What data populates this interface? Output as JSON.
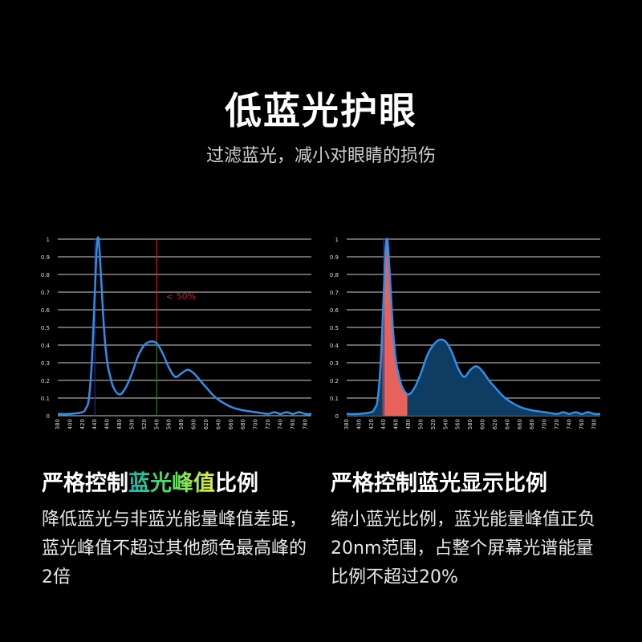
{
  "header": {
    "title": "低蓝光护眼",
    "subtitle": "过滤蓝光，减小对眼睛的损伤"
  },
  "left_panel": {
    "heading_a": "严格控制",
    "heading_b": "蓝光峰值",
    "heading_c": "比例",
    "desc": "降低蓝光与非蓝光能量峰值差距，蓝光峰值不超过其他颜色最高峰的2倍"
  },
  "right_panel": {
    "heading": "严格控制蓝光显示比例",
    "desc": "缩小蓝光比例，蓝光能量峰值正负20nm范围，占整个屏幕光谱能量比例不超过20%"
  },
  "colors": {
    "curve": "#2f8fe8",
    "blue_fill": "#0e3c63",
    "red_fill": "#e8625c",
    "annotation": "#cc1f1f",
    "grid": "#cfcfcf"
  },
  "chart_data": [
    {
      "type": "line",
      "xlabel": "",
      "ylabel": "",
      "xlim": [
        380,
        790
      ],
      "ylim": [
        0,
        1
      ],
      "grid": true,
      "x_ticks": [
        380,
        400,
        420,
        440,
        460,
        480,
        500,
        520,
        540,
        560,
        580,
        600,
        620,
        640,
        660,
        680,
        700,
        720,
        740,
        760,
        780
      ],
      "y_ticks": [
        0,
        0.1,
        0.2,
        0.3,
        0.4,
        0.5,
        0.6,
        0.7,
        0.8,
        0.9,
        1
      ],
      "series": [
        {
          "x": [
            380,
            400,
            420,
            425,
            430,
            435,
            440,
            443,
            446,
            450,
            455,
            460,
            465,
            470,
            480,
            490,
            500,
            510,
            520,
            530,
            540,
            550,
            560,
            570,
            580,
            590,
            600,
            610,
            620,
            630,
            640,
            660,
            680,
            700,
            720,
            730,
            740,
            750,
            760,
            770,
            780,
            790
          ],
          "y": [
            0.01,
            0.01,
            0.02,
            0.04,
            0.09,
            0.3,
            0.7,
            0.95,
            1.0,
            0.78,
            0.48,
            0.3,
            0.22,
            0.16,
            0.12,
            0.16,
            0.24,
            0.34,
            0.4,
            0.42,
            0.41,
            0.35,
            0.27,
            0.22,
            0.24,
            0.26,
            0.24,
            0.2,
            0.16,
            0.12,
            0.09,
            0.05,
            0.03,
            0.02,
            0.01,
            0.02,
            0.01,
            0.02,
            0.01,
            0.02,
            0.01,
            0.01
          ]
        }
      ],
      "annotations": [
        {
          "type": "vline",
          "x": 440,
          "from": 0,
          "to": 1,
          "color": "#2a2a8a"
        },
        {
          "type": "vline",
          "x": 540,
          "from": 0.42,
          "to": 1,
          "color": "#cc1f1f"
        },
        {
          "type": "vline",
          "x": 540,
          "from": 0,
          "to": 0.42,
          "color": "#2e7d2e"
        },
        {
          "type": "text",
          "x": 555,
          "y": 0.66,
          "text": "< 50%",
          "color": "#cc1f1f"
        }
      ]
    },
    {
      "type": "area",
      "xlabel": "",
      "ylabel": "",
      "xlim": [
        380,
        790
      ],
      "ylim": [
        0,
        1
      ],
      "grid": true,
      "x_ticks": [
        380,
        400,
        420,
        440,
        460,
        480,
        500,
        520,
        540,
        560,
        580,
        600,
        620,
        640,
        660,
        680,
        700,
        720,
        740,
        760,
        780
      ],
      "y_ticks": [
        0,
        0.1,
        0.2,
        0.3,
        0.4,
        0.5,
        0.6,
        0.7,
        0.8,
        0.9,
        1
      ],
      "highlight_range": [
        438,
        478
      ],
      "series": [
        {
          "x": [
            380,
            400,
            420,
            425,
            430,
            435,
            440,
            443,
            446,
            450,
            455,
            460,
            465,
            470,
            480,
            490,
            500,
            510,
            520,
            530,
            540,
            550,
            560,
            570,
            580,
            590,
            600,
            610,
            620,
            630,
            640,
            660,
            680,
            700,
            720,
            730,
            740,
            750,
            760,
            770,
            780,
            790
          ],
          "y": [
            0.01,
            0.01,
            0.02,
            0.04,
            0.09,
            0.3,
            0.7,
            0.95,
            0.99,
            0.78,
            0.48,
            0.3,
            0.22,
            0.16,
            0.12,
            0.16,
            0.24,
            0.34,
            0.4,
            0.43,
            0.42,
            0.36,
            0.27,
            0.22,
            0.26,
            0.28,
            0.25,
            0.2,
            0.16,
            0.12,
            0.09,
            0.05,
            0.03,
            0.02,
            0.01,
            0.02,
            0.01,
            0.02,
            0.01,
            0.02,
            0.01,
            0.01
          ]
        }
      ],
      "annotations": [
        {
          "type": "vline",
          "x": 440,
          "from": 0,
          "to": 1,
          "color": "#2a2a8a"
        }
      ]
    }
  ]
}
